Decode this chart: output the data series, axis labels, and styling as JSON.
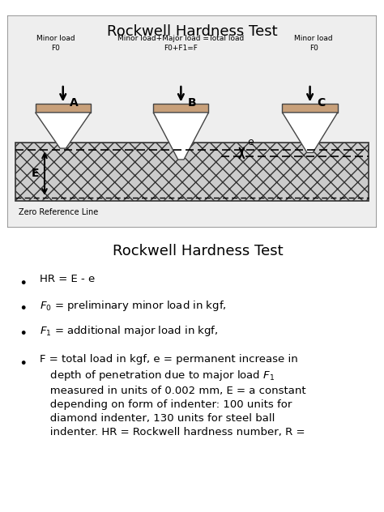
{
  "title": "Rockwell Hardness Test",
  "title2": "Rockwell Hardness Test",
  "indenter_color": "#c8a07a",
  "indenter_border": "#444444",
  "labels_A_line1": "Minor load",
  "labels_A_line2": "F0",
  "labels_B_line1": "Minor load+Major load =Total load",
  "labels_B_line2": "F0+F1=F",
  "labels_C_line1": "Minor load",
  "labels_C_line2": "F0",
  "zero_ref_label": "Zero Reference Line"
}
